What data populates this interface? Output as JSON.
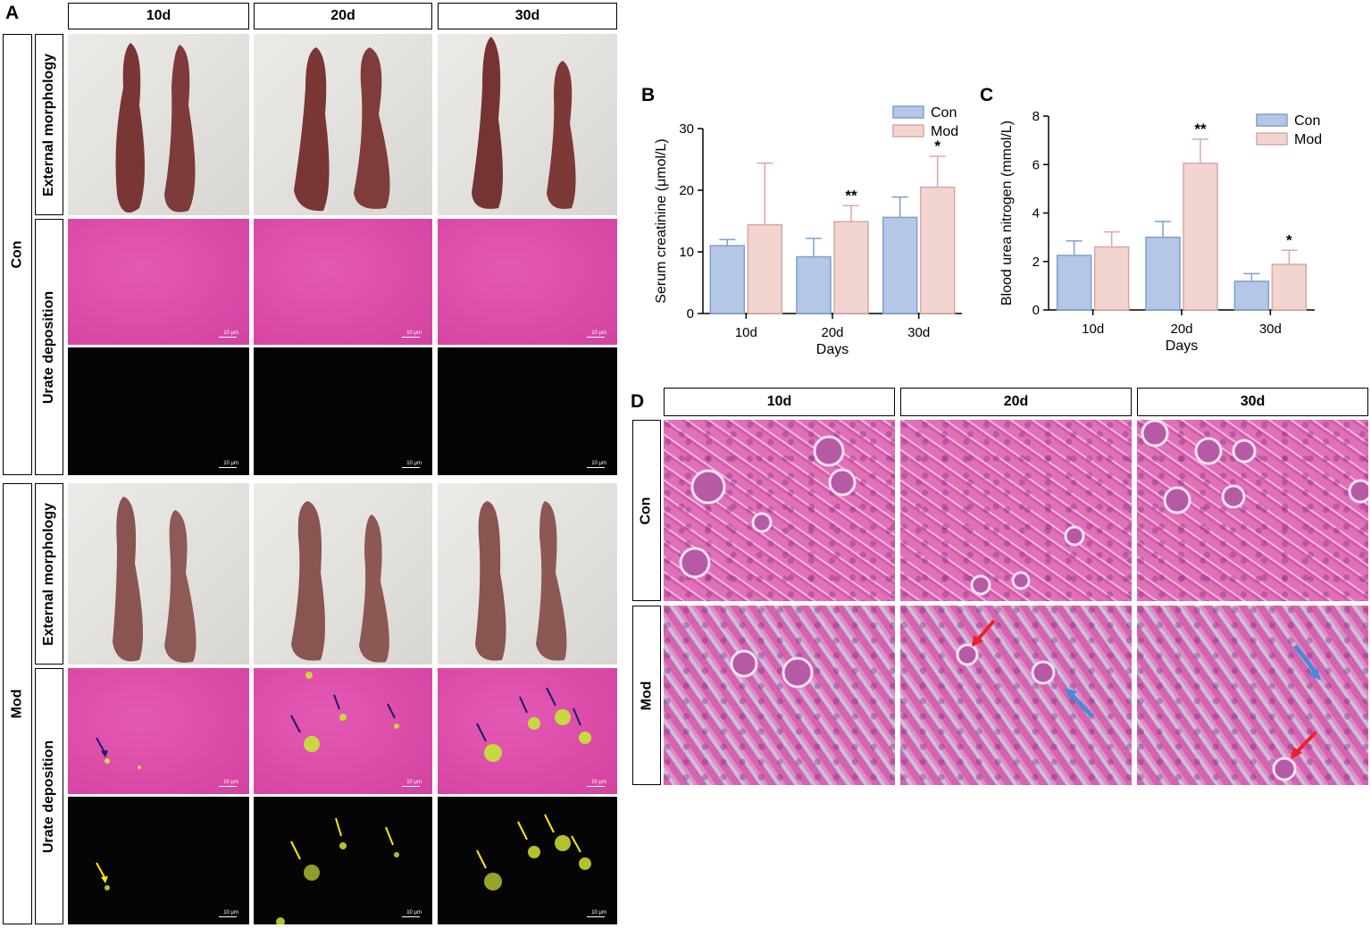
{
  "panels": {
    "A": "A",
    "B": "B",
    "C": "C",
    "D": "D"
  },
  "panel_a": {
    "columns": [
      "10d",
      "20d",
      "30d"
    ],
    "groups": [
      "Con",
      "Mod"
    ],
    "rows": [
      "External morphology",
      "Urate deposition"
    ],
    "scale_label": "10 μm"
  },
  "panel_d": {
    "columns": [
      "10d",
      "20d",
      "30d"
    ],
    "groups": [
      "Con",
      "Mod"
    ]
  },
  "chart_data": [
    {
      "panel": "B",
      "type": "bar",
      "categories": [
        "10d",
        "20d",
        "30d"
      ],
      "series": [
        {
          "name": "Con",
          "values": [
            11,
            9.2,
            15.6
          ],
          "errors": [
            1,
            3,
            3.3
          ],
          "color": "#b4c7e7",
          "stroke": "#7f9fcf"
        },
        {
          "name": "Mod",
          "values": [
            14.4,
            14.9,
            20.5
          ],
          "errors": [
            10,
            2.6,
            5
          ],
          "color": "#f2d4d0",
          "stroke": "#d9a8a4"
        }
      ],
      "significance": [
        [
          "",
          ""
        ],
        [
          "",
          "**"
        ],
        [
          "",
          "*"
        ]
      ],
      "xlabel": "Days",
      "ylabel": "Serum creatinine (μmol/L)",
      "ylim": [
        0,
        30
      ],
      "yticks": [
        0,
        10,
        20,
        30
      ],
      "legend_position": "top-right"
    },
    {
      "panel": "C",
      "type": "bar",
      "categories": [
        "10d",
        "20d",
        "30d"
      ],
      "series": [
        {
          "name": "Con",
          "values": [
            2.25,
            3.0,
            1.18
          ],
          "errors": [
            0.6,
            0.65,
            0.32
          ],
          "color": "#b4c7e7",
          "stroke": "#7f9fcf"
        },
        {
          "name": "Mod",
          "values": [
            2.6,
            6.05,
            1.88
          ],
          "errors": [
            0.62,
            1.0,
            0.58
          ],
          "color": "#f2d4d0",
          "stroke": "#d9a8a4"
        }
      ],
      "significance": [
        [
          "",
          ""
        ],
        [
          "",
          "**"
        ],
        [
          "",
          "*"
        ]
      ],
      "xlabel": "Days",
      "ylabel": "Blood urea nitrogen (mmol/L)",
      "ylim": [
        0,
        8
      ],
      "yticks": [
        0,
        2,
        4,
        6,
        8
      ],
      "legend_position": "top-right"
    }
  ]
}
